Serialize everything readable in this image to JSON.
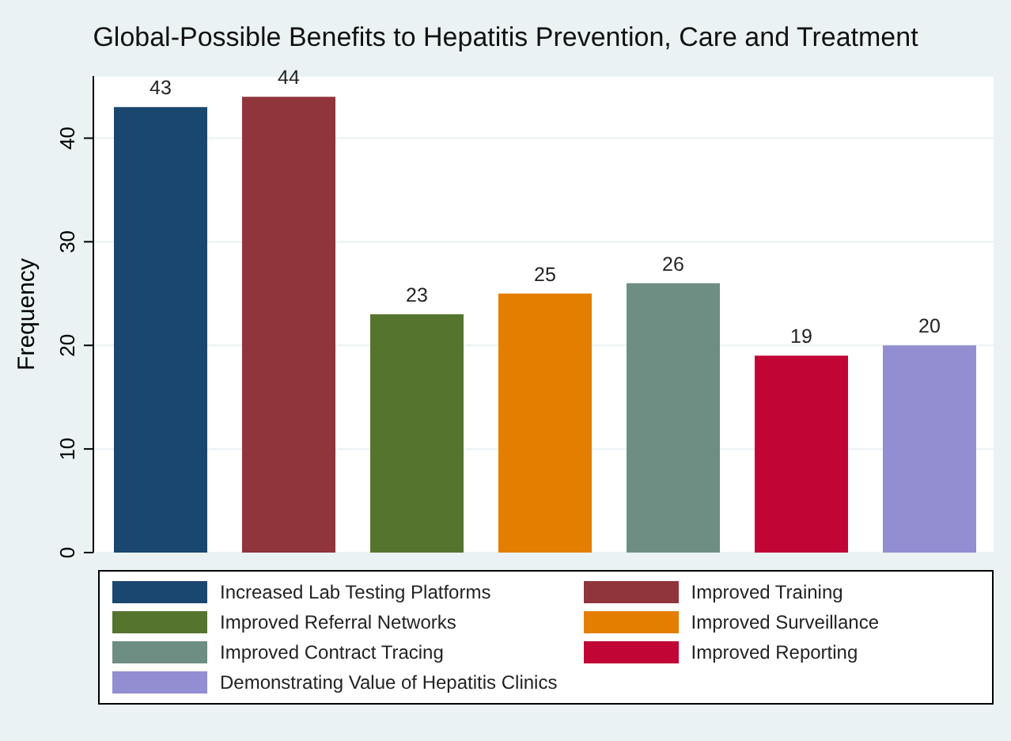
{
  "chart_data": {
    "type": "bar",
    "title": "Global-Possible Benefits to Hepatitis Prevention, Care and Treatment",
    "ylabel": "Frequency",
    "categories": [
      null
    ],
    "series": [
      {
        "name": "Increased Lab Testing Platforms",
        "color": "#1a476f",
        "values": [
          43
        ]
      },
      {
        "name": "Improved Training",
        "color": "#90353b",
        "values": [
          44
        ]
      },
      {
        "name": "Improved Referral Networks",
        "color": "#55752f",
        "values": [
          23
        ]
      },
      {
        "name": "Improved Surveillance",
        "color": "#e37e00",
        "values": [
          25
        ]
      },
      {
        "name": "Improved Contract Tracing",
        "color": "#6e8e84",
        "values": [
          26
        ]
      },
      {
        "name": "Improved Reporting",
        "color": "#c10534",
        "values": [
          19
        ]
      },
      {
        "name": "Demonstrating Value of Hepatitis Clinics",
        "color": "#938dd2",
        "values": [
          20
        ]
      }
    ],
    "ylim": [
      0,
      46
    ],
    "yticks": [
      0,
      10,
      20,
      30,
      40
    ],
    "grid": "y",
    "data_labels": true,
    "legend": "bottom"
  }
}
